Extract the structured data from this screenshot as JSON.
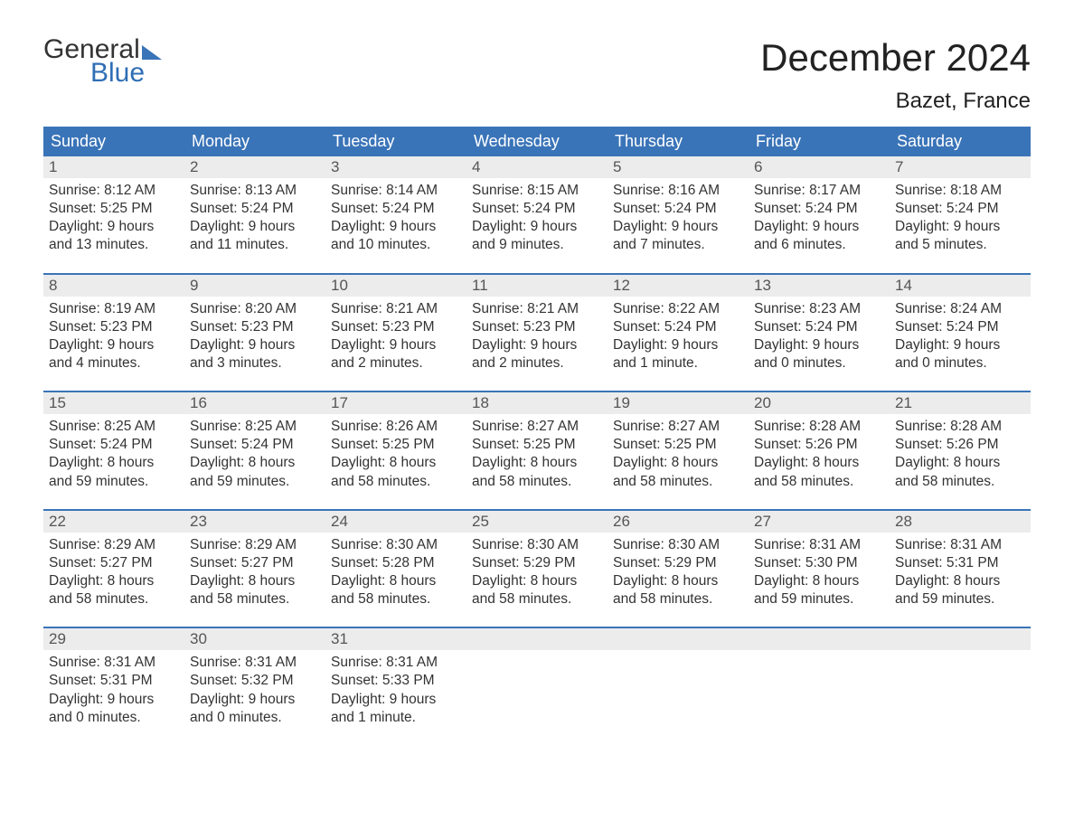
{
  "logo": {
    "line1": "General",
    "line2": "Blue"
  },
  "title": "December 2024",
  "location": "Bazet, France",
  "colors": {
    "header_bg": "#3a74b8",
    "header_text": "#ffffff",
    "daynum_bg": "#ececec",
    "daynum_text": "#555555",
    "body_text": "#333333",
    "week_border": "#3a74b8",
    "logo_blue": "#2f6eb5"
  },
  "day_labels": [
    "Sunday",
    "Monday",
    "Tuesday",
    "Wednesday",
    "Thursday",
    "Friday",
    "Saturday"
  ],
  "weeks": [
    [
      {
        "n": "1",
        "sr": "Sunrise: 8:12 AM",
        "ss": "Sunset: 5:25 PM",
        "d1": "Daylight: 9 hours",
        "d2": "and 13 minutes."
      },
      {
        "n": "2",
        "sr": "Sunrise: 8:13 AM",
        "ss": "Sunset: 5:24 PM",
        "d1": "Daylight: 9 hours",
        "d2": "and 11 minutes."
      },
      {
        "n": "3",
        "sr": "Sunrise: 8:14 AM",
        "ss": "Sunset: 5:24 PM",
        "d1": "Daylight: 9 hours",
        "d2": "and 10 minutes."
      },
      {
        "n": "4",
        "sr": "Sunrise: 8:15 AM",
        "ss": "Sunset: 5:24 PM",
        "d1": "Daylight: 9 hours",
        "d2": "and 9 minutes."
      },
      {
        "n": "5",
        "sr": "Sunrise: 8:16 AM",
        "ss": "Sunset: 5:24 PM",
        "d1": "Daylight: 9 hours",
        "d2": "and 7 minutes."
      },
      {
        "n": "6",
        "sr": "Sunrise: 8:17 AM",
        "ss": "Sunset: 5:24 PM",
        "d1": "Daylight: 9 hours",
        "d2": "and 6 minutes."
      },
      {
        "n": "7",
        "sr": "Sunrise: 8:18 AM",
        "ss": "Sunset: 5:24 PM",
        "d1": "Daylight: 9 hours",
        "d2": "and 5 minutes."
      }
    ],
    [
      {
        "n": "8",
        "sr": "Sunrise: 8:19 AM",
        "ss": "Sunset: 5:23 PM",
        "d1": "Daylight: 9 hours",
        "d2": "and 4 minutes."
      },
      {
        "n": "9",
        "sr": "Sunrise: 8:20 AM",
        "ss": "Sunset: 5:23 PM",
        "d1": "Daylight: 9 hours",
        "d2": "and 3 minutes."
      },
      {
        "n": "10",
        "sr": "Sunrise: 8:21 AM",
        "ss": "Sunset: 5:23 PM",
        "d1": "Daylight: 9 hours",
        "d2": "and 2 minutes."
      },
      {
        "n": "11",
        "sr": "Sunrise: 8:21 AM",
        "ss": "Sunset: 5:23 PM",
        "d1": "Daylight: 9 hours",
        "d2": "and 2 minutes."
      },
      {
        "n": "12",
        "sr": "Sunrise: 8:22 AM",
        "ss": "Sunset: 5:24 PM",
        "d1": "Daylight: 9 hours",
        "d2": "and 1 minute."
      },
      {
        "n": "13",
        "sr": "Sunrise: 8:23 AM",
        "ss": "Sunset: 5:24 PM",
        "d1": "Daylight: 9 hours",
        "d2": "and 0 minutes."
      },
      {
        "n": "14",
        "sr": "Sunrise: 8:24 AM",
        "ss": "Sunset: 5:24 PM",
        "d1": "Daylight: 9 hours",
        "d2": "and 0 minutes."
      }
    ],
    [
      {
        "n": "15",
        "sr": "Sunrise: 8:25 AM",
        "ss": "Sunset: 5:24 PM",
        "d1": "Daylight: 8 hours",
        "d2": "and 59 minutes."
      },
      {
        "n": "16",
        "sr": "Sunrise: 8:25 AM",
        "ss": "Sunset: 5:24 PM",
        "d1": "Daylight: 8 hours",
        "d2": "and 59 minutes."
      },
      {
        "n": "17",
        "sr": "Sunrise: 8:26 AM",
        "ss": "Sunset: 5:25 PM",
        "d1": "Daylight: 8 hours",
        "d2": "and 58 minutes."
      },
      {
        "n": "18",
        "sr": "Sunrise: 8:27 AM",
        "ss": "Sunset: 5:25 PM",
        "d1": "Daylight: 8 hours",
        "d2": "and 58 minutes."
      },
      {
        "n": "19",
        "sr": "Sunrise: 8:27 AM",
        "ss": "Sunset: 5:25 PM",
        "d1": "Daylight: 8 hours",
        "d2": "and 58 minutes."
      },
      {
        "n": "20",
        "sr": "Sunrise: 8:28 AM",
        "ss": "Sunset: 5:26 PM",
        "d1": "Daylight: 8 hours",
        "d2": "and 58 minutes."
      },
      {
        "n": "21",
        "sr": "Sunrise: 8:28 AM",
        "ss": "Sunset: 5:26 PM",
        "d1": "Daylight: 8 hours",
        "d2": "and 58 minutes."
      }
    ],
    [
      {
        "n": "22",
        "sr": "Sunrise: 8:29 AM",
        "ss": "Sunset: 5:27 PM",
        "d1": "Daylight: 8 hours",
        "d2": "and 58 minutes."
      },
      {
        "n": "23",
        "sr": "Sunrise: 8:29 AM",
        "ss": "Sunset: 5:27 PM",
        "d1": "Daylight: 8 hours",
        "d2": "and 58 minutes."
      },
      {
        "n": "24",
        "sr": "Sunrise: 8:30 AM",
        "ss": "Sunset: 5:28 PM",
        "d1": "Daylight: 8 hours",
        "d2": "and 58 minutes."
      },
      {
        "n": "25",
        "sr": "Sunrise: 8:30 AM",
        "ss": "Sunset: 5:29 PM",
        "d1": "Daylight: 8 hours",
        "d2": "and 58 minutes."
      },
      {
        "n": "26",
        "sr": "Sunrise: 8:30 AM",
        "ss": "Sunset: 5:29 PM",
        "d1": "Daylight: 8 hours",
        "d2": "and 58 minutes."
      },
      {
        "n": "27",
        "sr": "Sunrise: 8:31 AM",
        "ss": "Sunset: 5:30 PM",
        "d1": "Daylight: 8 hours",
        "d2": "and 59 minutes."
      },
      {
        "n": "28",
        "sr": "Sunrise: 8:31 AM",
        "ss": "Sunset: 5:31 PM",
        "d1": "Daylight: 8 hours",
        "d2": "and 59 minutes."
      }
    ],
    [
      {
        "n": "29",
        "sr": "Sunrise: 8:31 AM",
        "ss": "Sunset: 5:31 PM",
        "d1": "Daylight: 9 hours",
        "d2": "and 0 minutes."
      },
      {
        "n": "30",
        "sr": "Sunrise: 8:31 AM",
        "ss": "Sunset: 5:32 PM",
        "d1": "Daylight: 9 hours",
        "d2": "and 0 minutes."
      },
      {
        "n": "31",
        "sr": "Sunrise: 8:31 AM",
        "ss": "Sunset: 5:33 PM",
        "d1": "Daylight: 9 hours",
        "d2": "and 1 minute."
      },
      {
        "empty": true
      },
      {
        "empty": true
      },
      {
        "empty": true
      },
      {
        "empty": true
      }
    ]
  ]
}
